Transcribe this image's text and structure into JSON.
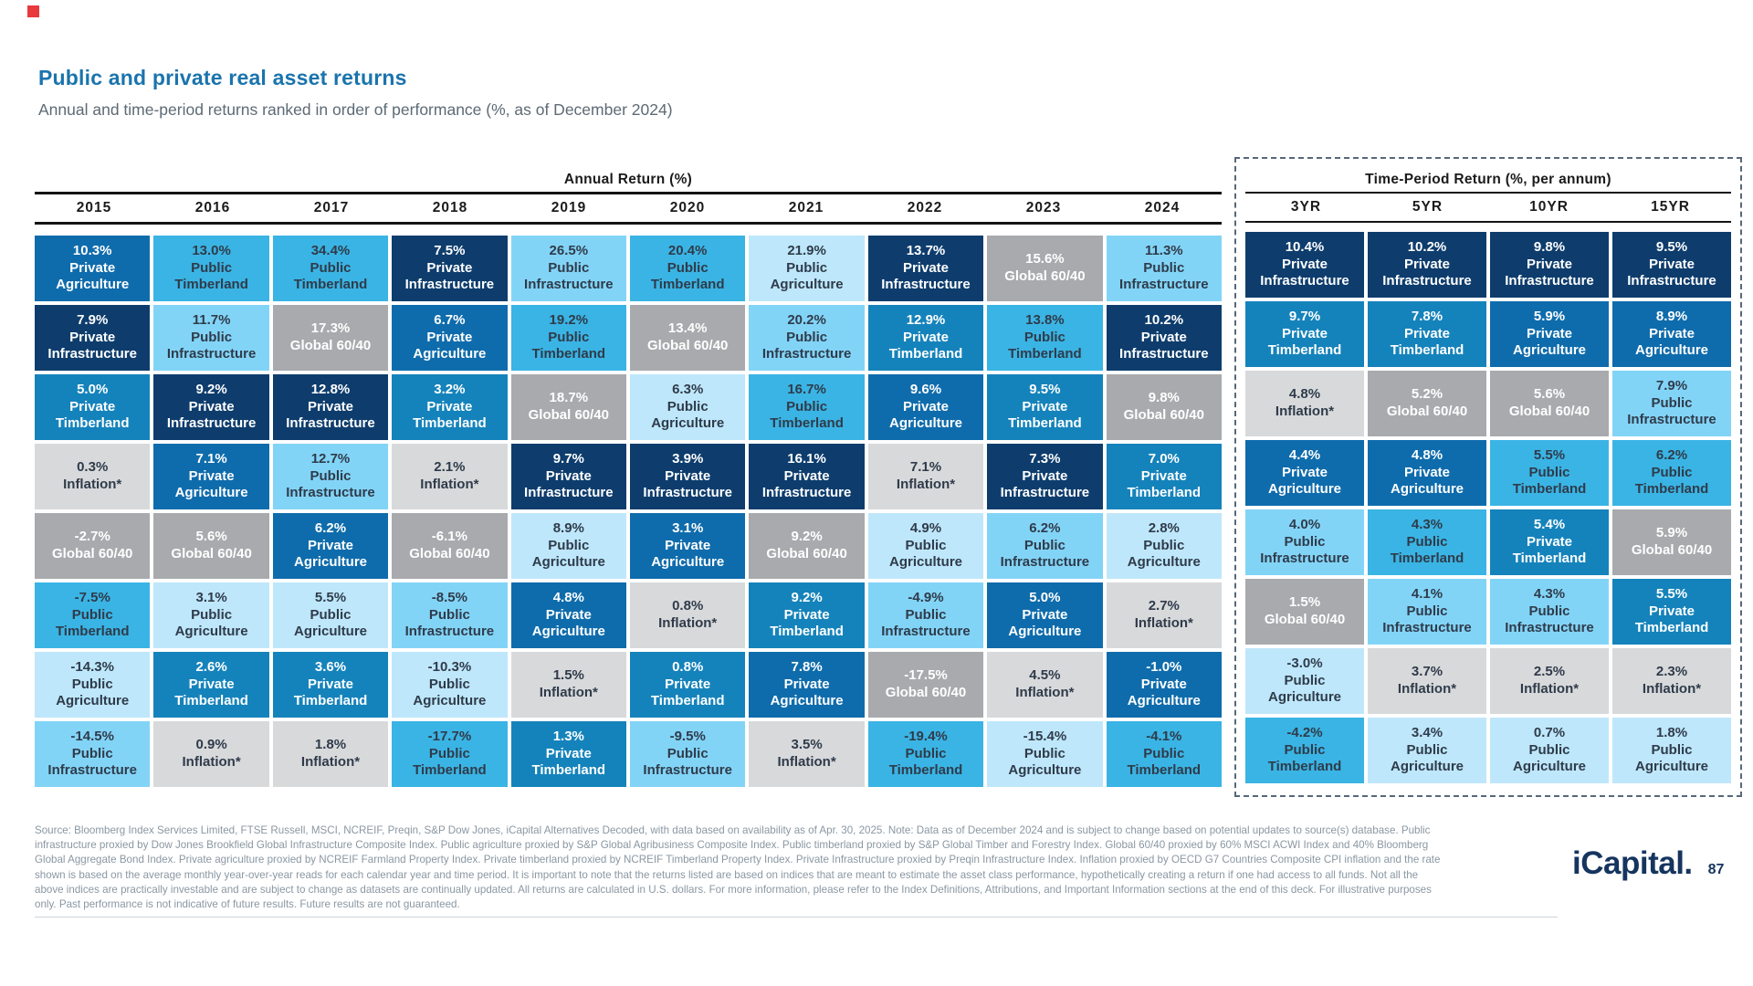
{
  "brand": {
    "accent_color": "#e8393d",
    "title_color": "#1a74ad",
    "logo_color": "#15355f"
  },
  "header": {
    "title": "Public and private real asset returns",
    "subtitle": "Annual and time-period returns ranked in order of performance (%, as of December 2024)"
  },
  "chart_data": {
    "type": "table",
    "subtype": "ranked-return-quilt",
    "title": "Public and private real asset returns",
    "value_format": "percent",
    "as_of": "December 2024",
    "assets": {
      "private_agriculture": {
        "name": "Private Agriculture",
        "color": "#0f6cac",
        "text": "#ffffff"
      },
      "private_infrastructure": {
        "name": "Private Infrastructure",
        "color": "#0e3d6d",
        "text": "#ffffff"
      },
      "private_timberland": {
        "name": "Private Timberland",
        "color": "#1583bb",
        "text": "#ffffff"
      },
      "public_timberland": {
        "name": "Public Timberland",
        "color": "#3ab4e4",
        "text": "#2f3b4a"
      },
      "public_infrastructure": {
        "name": "Public Infrastructure",
        "color": "#82d4f7",
        "text": "#2f3b4a"
      },
      "public_agriculture": {
        "name": "Public Agriculture",
        "color": "#bee7fb",
        "text": "#2f3b4a"
      },
      "global_60_40": {
        "name": "Global 60/40",
        "color": "#a8aaad",
        "text": "#ffffff"
      },
      "inflation": {
        "name": "Inflation*",
        "color": "#d8d9db",
        "text": "#2f3b4a"
      }
    },
    "sections": [
      {
        "id": "annual",
        "label": "Annual Return (%)",
        "columns": [
          {
            "header": "2015",
            "cells": [
              {
                "value": 10.3,
                "asset": "private_agriculture"
              },
              {
                "value": 7.9,
                "asset": "private_infrastructure"
              },
              {
                "value": 5.0,
                "asset": "private_timberland"
              },
              {
                "value": 0.3,
                "asset": "inflation"
              },
              {
                "value": -2.7,
                "asset": "global_60_40"
              },
              {
                "value": -7.5,
                "asset": "public_timberland"
              },
              {
                "value": -14.3,
                "asset": "public_agriculture"
              },
              {
                "value": -14.5,
                "asset": "public_infrastructure"
              }
            ]
          },
          {
            "header": "2016",
            "cells": [
              {
                "value": 13.0,
                "asset": "public_timberland"
              },
              {
                "value": 11.7,
                "asset": "public_infrastructure"
              },
              {
                "value": 9.2,
                "asset": "private_infrastructure"
              },
              {
                "value": 7.1,
                "asset": "private_agriculture"
              },
              {
                "value": 5.6,
                "asset": "global_60_40"
              },
              {
                "value": 3.1,
                "asset": "public_agriculture"
              },
              {
                "value": 2.6,
                "asset": "private_timberland"
              },
              {
                "value": 0.9,
                "asset": "inflation"
              }
            ]
          },
          {
            "header": "2017",
            "cells": [
              {
                "value": 34.4,
                "asset": "public_timberland"
              },
              {
                "value": 17.3,
                "asset": "global_60_40"
              },
              {
                "value": 12.8,
                "asset": "private_infrastructure"
              },
              {
                "value": 12.7,
                "asset": "public_infrastructure"
              },
              {
                "value": 6.2,
                "asset": "private_agriculture"
              },
              {
                "value": 5.5,
                "asset": "public_agriculture"
              },
              {
                "value": 3.6,
                "asset": "private_timberland"
              },
              {
                "value": 1.8,
                "asset": "inflation"
              }
            ]
          },
          {
            "header": "2018",
            "cells": [
              {
                "value": 7.5,
                "asset": "private_infrastructure"
              },
              {
                "value": 6.7,
                "asset": "private_agriculture"
              },
              {
                "value": 3.2,
                "asset": "private_timberland"
              },
              {
                "value": 2.1,
                "asset": "inflation"
              },
              {
                "value": -6.1,
                "asset": "global_60_40"
              },
              {
                "value": -8.5,
                "asset": "public_infrastructure"
              },
              {
                "value": -10.3,
                "asset": "public_agriculture"
              },
              {
                "value": -17.7,
                "asset": "public_timberland"
              }
            ]
          },
          {
            "header": "2019",
            "cells": [
              {
                "value": 26.5,
                "asset": "public_infrastructure"
              },
              {
                "value": 19.2,
                "asset": "public_timberland"
              },
              {
                "value": 18.7,
                "asset": "global_60_40"
              },
              {
                "value": 9.7,
                "asset": "private_infrastructure"
              },
              {
                "value": 8.9,
                "asset": "public_agriculture"
              },
              {
                "value": 4.8,
                "asset": "private_agriculture"
              },
              {
                "value": 1.5,
                "asset": "inflation"
              },
              {
                "value": 1.3,
                "asset": "private_timberland"
              }
            ]
          },
          {
            "header": "2020",
            "cells": [
              {
                "value": 20.4,
                "asset": "public_timberland"
              },
              {
                "value": 13.4,
                "asset": "global_60_40"
              },
              {
                "value": 6.3,
                "asset": "public_agriculture"
              },
              {
                "value": 3.9,
                "asset": "private_infrastructure"
              },
              {
                "value": 3.1,
                "asset": "private_agriculture"
              },
              {
                "value": 0.8,
                "asset": "inflation"
              },
              {
                "value": 0.8,
                "asset": "private_timberland"
              },
              {
                "value": -9.5,
                "asset": "public_infrastructure"
              }
            ]
          },
          {
            "header": "2021",
            "cells": [
              {
                "value": 21.9,
                "asset": "public_agriculture"
              },
              {
                "value": 20.2,
                "asset": "public_infrastructure"
              },
              {
                "value": 16.7,
                "asset": "public_timberland"
              },
              {
                "value": 16.1,
                "asset": "private_infrastructure"
              },
              {
                "value": 9.2,
                "asset": "global_60_40"
              },
              {
                "value": 9.2,
                "asset": "private_timberland"
              },
              {
                "value": 7.8,
                "asset": "private_agriculture"
              },
              {
                "value": 3.5,
                "asset": "inflation"
              }
            ]
          },
          {
            "header": "2022",
            "cells": [
              {
                "value": 13.7,
                "asset": "private_infrastructure"
              },
              {
                "value": 12.9,
                "asset": "private_timberland"
              },
              {
                "value": 9.6,
                "asset": "private_agriculture"
              },
              {
                "value": 7.1,
                "asset": "inflation"
              },
              {
                "value": 4.9,
                "asset": "public_agriculture"
              },
              {
                "value": -4.9,
                "asset": "public_infrastructure"
              },
              {
                "value": -17.5,
                "asset": "global_60_40"
              },
              {
                "value": -19.4,
                "asset": "public_timberland"
              }
            ]
          },
          {
            "header": "2023",
            "cells": [
              {
                "value": 15.6,
                "asset": "global_60_40"
              },
              {
                "value": 13.8,
                "asset": "public_timberland"
              },
              {
                "value": 9.5,
                "asset": "private_timberland"
              },
              {
                "value": 7.3,
                "asset": "private_infrastructure"
              },
              {
                "value": 6.2,
                "asset": "public_infrastructure"
              },
              {
                "value": 5.0,
                "asset": "private_agriculture"
              },
              {
                "value": 4.5,
                "asset": "inflation"
              },
              {
                "value": -15.4,
                "asset": "public_agriculture"
              }
            ]
          },
          {
            "header": "2024",
            "cells": [
              {
                "value": 11.3,
                "asset": "public_infrastructure"
              },
              {
                "value": 10.2,
                "asset": "private_infrastructure"
              },
              {
                "value": 9.8,
                "asset": "global_60_40"
              },
              {
                "value": 7.0,
                "asset": "private_timberland"
              },
              {
                "value": 2.8,
                "asset": "public_agriculture"
              },
              {
                "value": 2.7,
                "asset": "inflation"
              },
              {
                "value": -1.0,
                "asset": "private_agriculture"
              },
              {
                "value": -4.1,
                "asset": "public_timberland"
              }
            ]
          }
        ]
      },
      {
        "id": "period",
        "label": "Time-Period Return (%, per annum)",
        "columns": [
          {
            "header": "3YR",
            "cells": [
              {
                "value": 10.4,
                "asset": "private_infrastructure"
              },
              {
                "value": 9.7,
                "asset": "private_timberland"
              },
              {
                "value": 4.8,
                "asset": "inflation"
              },
              {
                "value": 4.4,
                "asset": "private_agriculture"
              },
              {
                "value": 4.0,
                "asset": "public_infrastructure"
              },
              {
                "value": 1.5,
                "asset": "global_60_40"
              },
              {
                "value": -3.0,
                "asset": "public_agriculture"
              },
              {
                "value": -4.2,
                "asset": "public_timberland"
              }
            ]
          },
          {
            "header": "5YR",
            "cells": [
              {
                "value": 10.2,
                "asset": "private_infrastructure"
              },
              {
                "value": 7.8,
                "asset": "private_timberland"
              },
              {
                "value": 5.2,
                "asset": "global_60_40"
              },
              {
                "value": 4.8,
                "asset": "private_agriculture"
              },
              {
                "value": 4.3,
                "asset": "public_timberland"
              },
              {
                "value": 4.1,
                "asset": "public_infrastructure"
              },
              {
                "value": 3.7,
                "asset": "inflation"
              },
              {
                "value": 3.4,
                "asset": "public_agriculture"
              }
            ]
          },
          {
            "header": "10YR",
            "cells": [
              {
                "value": 9.8,
                "asset": "private_infrastructure"
              },
              {
                "value": 5.9,
                "asset": "private_agriculture"
              },
              {
                "value": 5.6,
                "asset": "global_60_40"
              },
              {
                "value": 5.5,
                "asset": "public_timberland"
              },
              {
                "value": 5.4,
                "asset": "private_timberland"
              },
              {
                "value": 4.3,
                "asset": "public_infrastructure"
              },
              {
                "value": 2.5,
                "asset": "inflation"
              },
              {
                "value": 0.7,
                "asset": "public_agriculture"
              }
            ]
          },
          {
            "header": "15YR",
            "cells": [
              {
                "value": 9.5,
                "asset": "private_infrastructure"
              },
              {
                "value": 8.9,
                "asset": "private_agriculture"
              },
              {
                "value": 7.9,
                "asset": "public_infrastructure"
              },
              {
                "value": 6.2,
                "asset": "public_timberland"
              },
              {
                "value": 5.9,
                "asset": "global_60_40"
              },
              {
                "value": 5.5,
                "asset": "private_timberland"
              },
              {
                "value": 2.3,
                "asset": "inflation"
              },
              {
                "value": 1.8,
                "asset": "public_agriculture"
              }
            ]
          }
        ]
      }
    ]
  },
  "footer": {
    "lines": [
      "Source: Bloomberg Index Services Limited, FTSE Russell, MSCI, NCREIF, Preqin, S&P Dow Jones, iCapital Alternatives Decoded, with data based on availability as of Apr. 30, 2025. Note: Data as of December 2024 and is subject to change based on potential updates to source(s) database. Public",
      "infrastructure proxied by Dow Jones Brookfield Global Infrastructure Composite Index. Public agriculture proxied by S&P Global Agribusiness Composite Index. Public timberland proxied by S&P Global Timber and Forestry Index. Global 60/40 proxied by 60% MSCI ACWI Index and 40% Bloomberg",
      "Global Aggregate Bond Index. Private agriculture proxied by NCREIF Farmland Property Index. Private timberland proxied by NCREIF Timberland Property Index. Private Infrastructure proxied by Preqin Infrastructure Index. Inflation proxied by OECD G7 Countries Composite CPI inflation and the rate",
      "shown is based on the average monthly year-over-year reads for each calendar year and time period. It is important to note that the returns listed are based on indices that are meant to estimate the asset class performance, hypothetically creating a return if one had access to all funds. Not all the",
      "above indices are practically investable and are subject to change as datasets are continually updated. All returns are calculated in U.S. dollars. For more information, please refer to the Index Definitions, Attributions, and Important Information sections at the end of this deck. For illustrative purposes",
      "only. Past performance is not indicative of future results. Future results are not guaranteed."
    ]
  },
  "logo": {
    "text": "iCapital",
    "dot": ".",
    "page": "87"
  }
}
